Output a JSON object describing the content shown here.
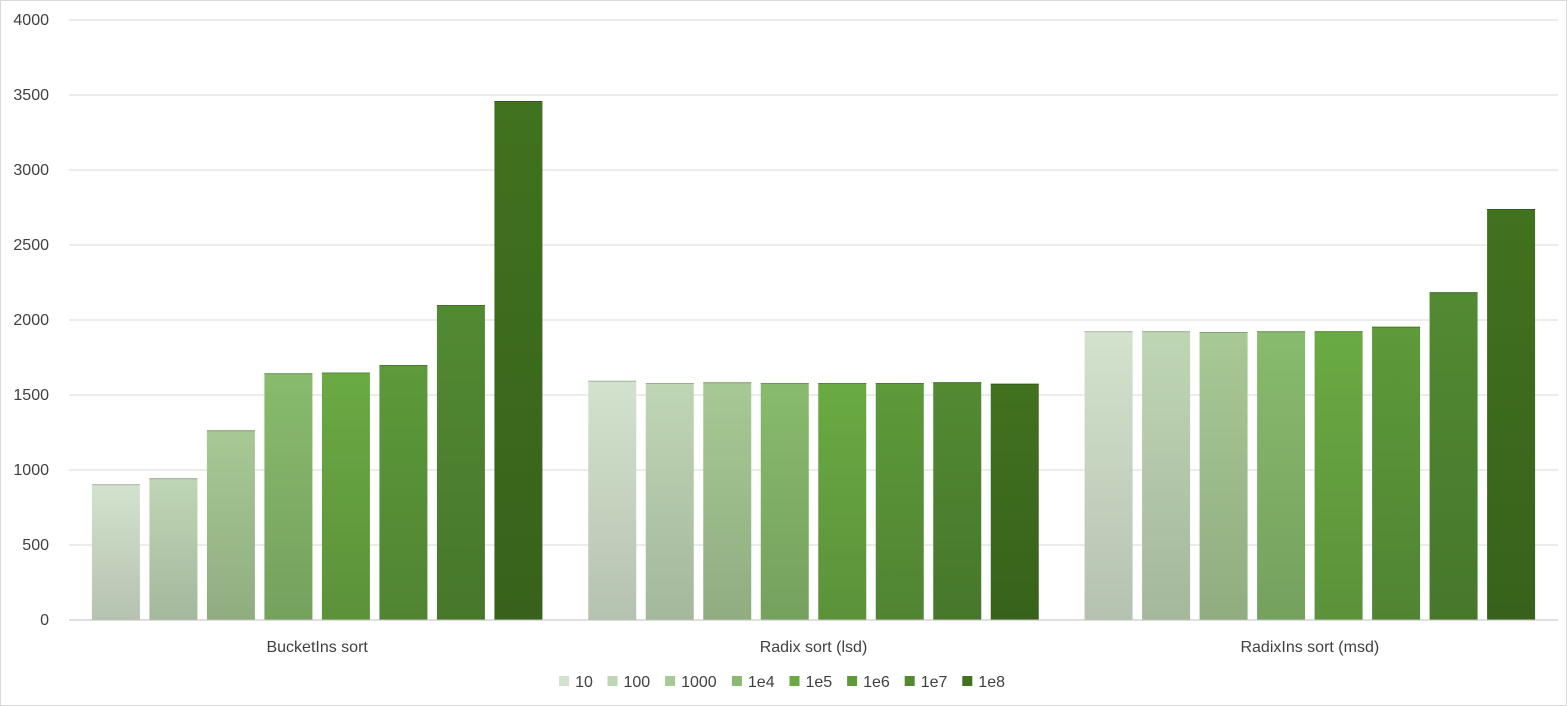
{
  "chart_data": {
    "type": "bar",
    "categories": [
      "BucketIns sort",
      "Radix sort (lsd)",
      "RadixIns sort (msd)"
    ],
    "series": [
      {
        "name": "10",
        "values": [
          905,
          1595,
          1925
        ],
        "color": "#d3e2cd"
      },
      {
        "name": "100",
        "values": [
          945,
          1580,
          1925
        ],
        "color": "#bfd6b5"
      },
      {
        "name": "1000",
        "values": [
          1265,
          1585,
          1920
        ],
        "color": "#a7c995"
      },
      {
        "name": "1e4",
        "values": [
          1645,
          1580,
          1925
        ],
        "color": "#88bb6d"
      },
      {
        "name": "1e5",
        "values": [
          1650,
          1580,
          1925
        ],
        "color": "#6aaa43"
      },
      {
        "name": "1e6",
        "values": [
          1700,
          1580,
          1955
        ],
        "color": "#5d9a3a"
      },
      {
        "name": "1e7",
        "values": [
          2100,
          1585,
          2185
        ],
        "color": "#528a32"
      },
      {
        "name": "1e8",
        "values": [
          3460,
          1575,
          2740
        ],
        "color": "#41721f"
      }
    ],
    "ylim": [
      0,
      4000
    ],
    "yticks": [
      "0",
      "500",
      "1000",
      "1500",
      "2000",
      "2500",
      "3000",
      "3500",
      "4000"
    ],
    "grid": true,
    "legend": "bottom"
  }
}
